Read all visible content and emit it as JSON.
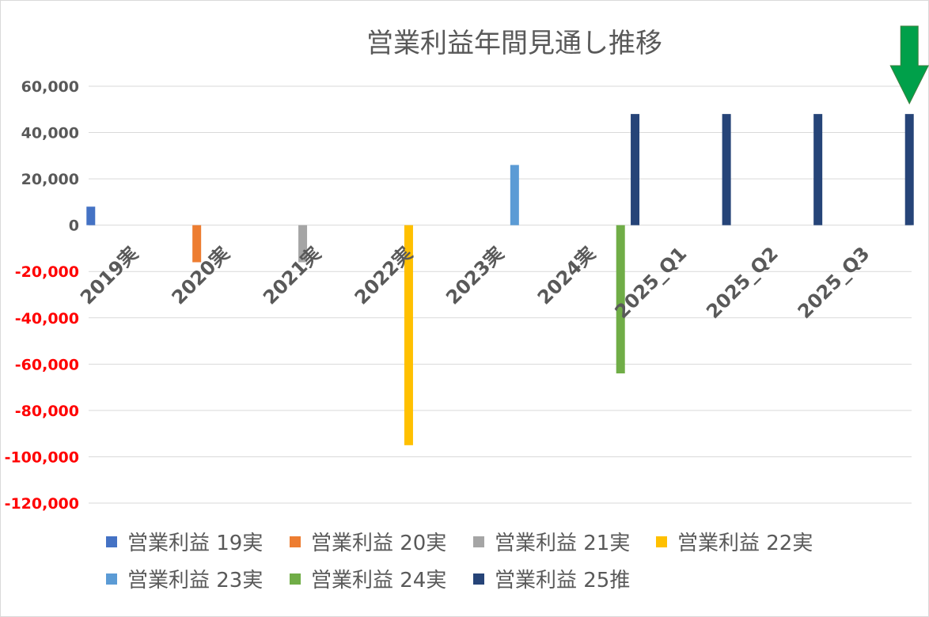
{
  "chart_data": {
    "type": "bar",
    "title": "営業利益年間見通し推移",
    "xlabel": "",
    "ylabel": "",
    "ylim": [
      -120000,
      60000
    ],
    "ytick_step": 20000,
    "ytick_labels": [
      "60,000",
      "40,000",
      "20,000",
      "0",
      "-20,000",
      "-40,000",
      "-60,000",
      "-80,000",
      "-100,000",
      "-120,000"
    ],
    "negative_tick_color": "#ff0000",
    "positive_tick_color": "#595959",
    "grid": true,
    "legend_position": "bottom",
    "categories": [
      "2019実",
      "2020実",
      "2021実",
      "2022実",
      "2023実",
      "2024実",
      "2025_Q1",
      "2025_Q2",
      "2025_Q3"
    ],
    "series": [
      {
        "name": "営業利益 19実",
        "color": "#4472c4",
        "values": [
          8000,
          null,
          null,
          null,
          null,
          null,
          null,
          null,
          null
        ]
      },
      {
        "name": "営業利益 20実",
        "color": "#ed7d31",
        "values": [
          null,
          -16000,
          null,
          null,
          null,
          null,
          null,
          null,
          null
        ]
      },
      {
        "name": "営業利益 21実",
        "color": "#a5a5a5",
        "values": [
          null,
          null,
          -16000,
          null,
          null,
          null,
          null,
          null,
          null
        ]
      },
      {
        "name": "営業利益 22実",
        "color": "#ffc000",
        "values": [
          null,
          null,
          null,
          -95000,
          null,
          null,
          null,
          null,
          null
        ]
      },
      {
        "name": "営業利益 23実",
        "color": "#5b9bd5",
        "values": [
          null,
          null,
          null,
          null,
          26000,
          null,
          null,
          null,
          null
        ]
      },
      {
        "name": "営業利益 24実",
        "color": "#70ad47",
        "values": [
          null,
          null,
          null,
          null,
          null,
          -64000,
          null,
          null,
          null
        ]
      },
      {
        "name": "営業利益 25推",
        "color": "#264478",
        "values": [
          null,
          null,
          null,
          null,
          null,
          48000,
          48000,
          48000,
          48000
        ]
      }
    ],
    "annotation": {
      "type": "arrow-down",
      "color": "#00a04a",
      "category": "2025_Q3"
    }
  }
}
